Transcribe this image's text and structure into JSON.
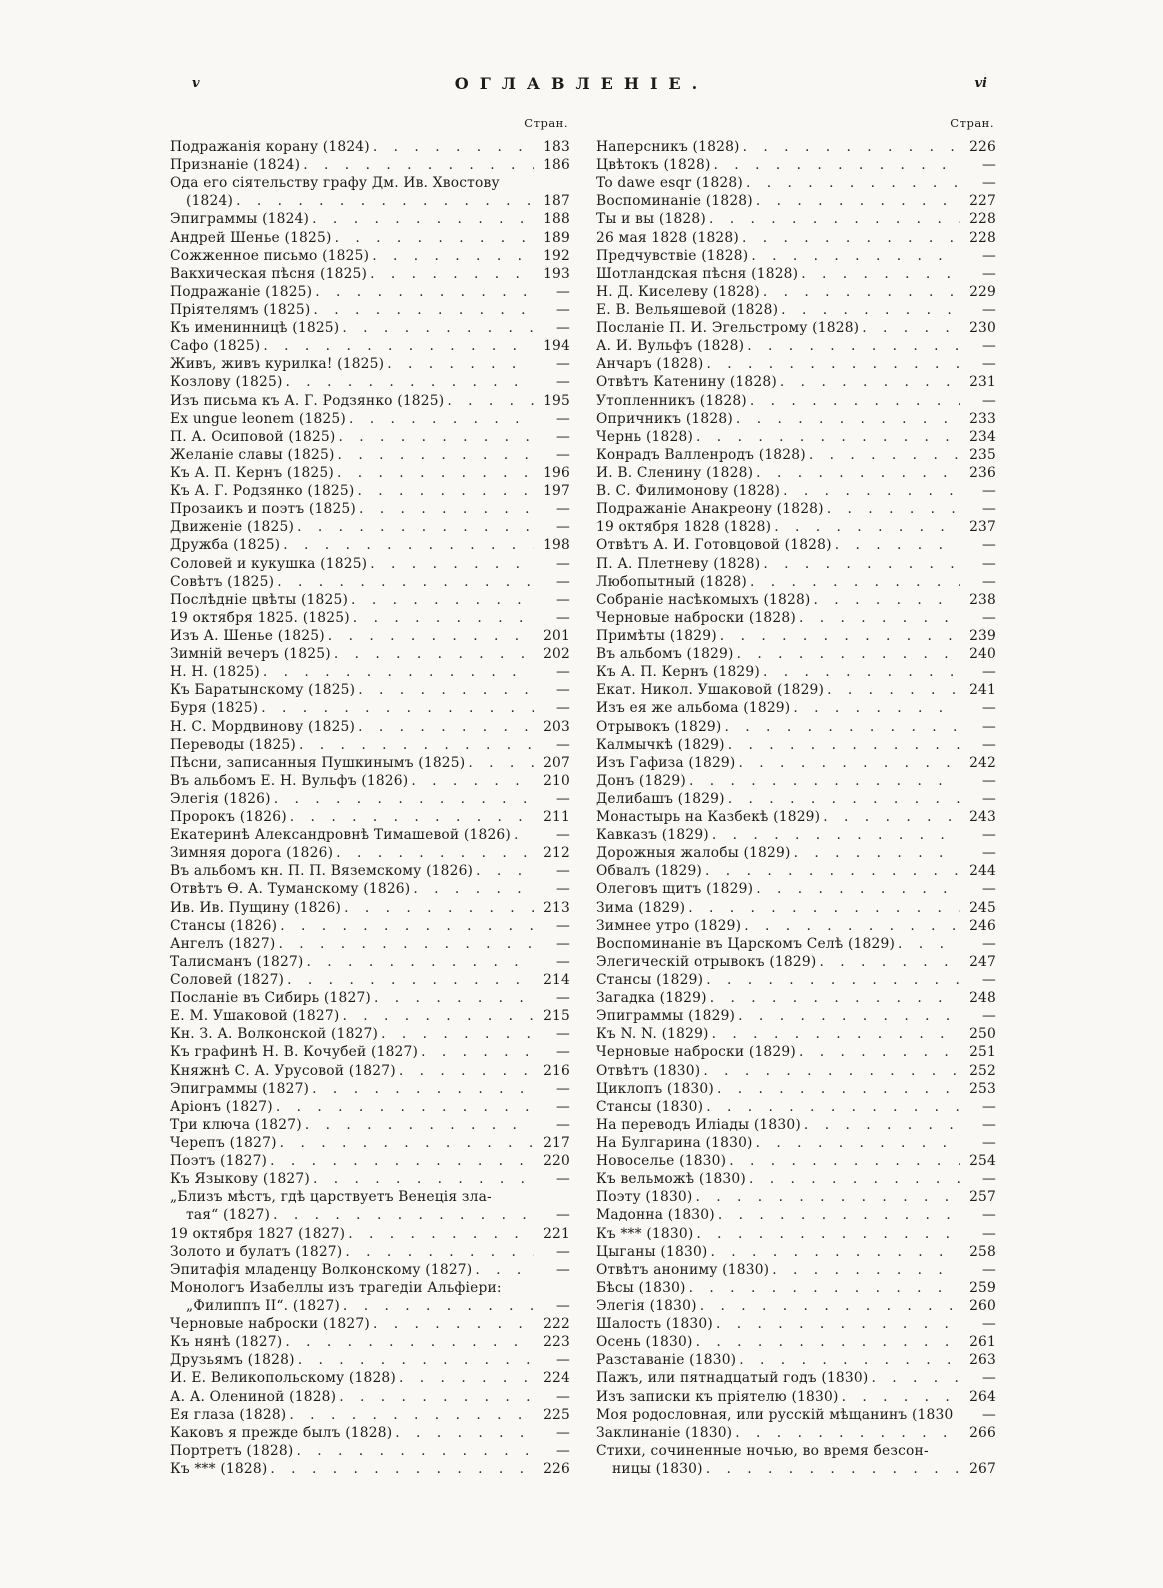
{
  "page": {
    "left_folio": "v",
    "right_folio": "vi",
    "title": "ОГЛАВЛЕНІЕ.",
    "column_header": "Стран."
  },
  "left_column": [
    {
      "text": "Подражанія корану (1824)",
      "page": "183"
    },
    {
      "text": "Признаніе (1824)",
      "page": "186"
    },
    {
      "text": "Ода его сіятельству графу Дм. Ив. Хвостову",
      "page": "",
      "leader": false
    },
    {
      "text": "(1824)",
      "page": "187",
      "indent": true
    },
    {
      "text": "Эпиграммы (1824)",
      "page": "188"
    },
    {
      "text": "Андрей Шенье (1825)",
      "page": "189"
    },
    {
      "text": "Сожженное письмо (1825)",
      "page": "192"
    },
    {
      "text": "Вакхическая пѣсня (1825)",
      "page": "193"
    },
    {
      "text": "Подражаніе (1825)",
      "page": "—"
    },
    {
      "text": "Пріятелямъ (1825)",
      "page": "—"
    },
    {
      "text": "Къ именинницѣ (1825)",
      "page": "—"
    },
    {
      "text": "Сафо (1825)",
      "page": "194"
    },
    {
      "text": "Живъ, живъ курилка! (1825)",
      "page": "—"
    },
    {
      "text": "Козлову (1825)",
      "page": "—"
    },
    {
      "text": "Изъ письма къ А. Г. Родзянко (1825)",
      "page": "195"
    },
    {
      "text": "Ex ungue leonem (1825)",
      "page": "—"
    },
    {
      "text": "П. А. Осиповой (1825)",
      "page": "—"
    },
    {
      "text": "Желаніе славы (1825)",
      "page": "—"
    },
    {
      "text": "Къ А. П. Кернъ (1825)",
      "page": "196"
    },
    {
      "text": "Къ А. Г. Родзянко (1825)",
      "page": "197"
    },
    {
      "text": "Прозаикъ и поэтъ (1825)",
      "page": "—"
    },
    {
      "text": "Движеніе (1825)",
      "page": "—"
    },
    {
      "text": "Дружба (1825)",
      "page": "198"
    },
    {
      "text": "Соловей и кукушка (1825)",
      "page": "—"
    },
    {
      "text": "Совѣтъ (1825)",
      "page": "—"
    },
    {
      "text": "Послѣдніе цвѣты (1825)",
      "page": "—"
    },
    {
      "text": "19 октября 1825. (1825)",
      "page": "—"
    },
    {
      "text": "Изъ А. Шенье (1825)",
      "page": "201"
    },
    {
      "text": "Зимній вечеръ (1825)",
      "page": "202"
    },
    {
      "text": "Н. Н. (1825)",
      "page": "—"
    },
    {
      "text": "Къ Баратынскому (1825)",
      "page": "—"
    },
    {
      "text": "Буря (1825)",
      "page": "—"
    },
    {
      "text": "Н. С. Мордвинову (1825)",
      "page": "203"
    },
    {
      "text": "Переводы (1825)",
      "page": "—"
    },
    {
      "text": "Пѣсни, записанныя Пушкинымъ (1825)",
      "page": "207"
    },
    {
      "text": "Въ альбомъ Е. Н. Вульфъ (1826)",
      "page": "210"
    },
    {
      "text": "Элегія (1826)",
      "page": "—"
    },
    {
      "text": "Пророкъ (1826)",
      "page": "211"
    },
    {
      "text": "Екатеринѣ Александровнѣ Тимашевой (1826)",
      "page": "—"
    },
    {
      "text": "Зимняя дорога (1826)",
      "page": "212"
    },
    {
      "text": "Въ альбомъ кн. П. П. Вяземскому (1826)",
      "page": "—"
    },
    {
      "text": "Отвѣтъ Ѳ. А. Туманскому (1826)",
      "page": "—"
    },
    {
      "text": "Ив. Ив. Пущину (1826)",
      "page": "213"
    },
    {
      "text": "Стансы (1826)",
      "page": "—"
    },
    {
      "text": "Ангелъ (1827)",
      "page": "—"
    },
    {
      "text": "Талисманъ (1827)",
      "page": "—"
    },
    {
      "text": "Соловей (1827)",
      "page": "214"
    },
    {
      "text": "Посланіе въ Сибирь (1827)",
      "page": "—"
    },
    {
      "text": "Е. М. Ушаковой (1827)",
      "page": "215"
    },
    {
      "text": "Кн. З. А. Волконской (1827)",
      "page": "—"
    },
    {
      "text": "Къ графинѣ Н. В. Кочубей (1827)",
      "page": "—"
    },
    {
      "text": "Княжнѣ С. А. Урусовой (1827)",
      "page": "216"
    },
    {
      "text": "Эпиграммы (1827)",
      "page": "—"
    },
    {
      "text": "Аріонъ (1827)",
      "page": "—"
    },
    {
      "text": "Три ключа (1827)",
      "page": "—"
    },
    {
      "text": "Черепъ (1827)",
      "page": "217"
    },
    {
      "text": "Поэтъ (1827)",
      "page": "220"
    },
    {
      "text": "Къ Языкову (1827)",
      "page": "—"
    },
    {
      "text": "„Близъ мѣстъ, гдѣ царствуетъ Венеція зла-",
      "page": "",
      "leader": false
    },
    {
      "text": "тая“ (1827)",
      "page": "—",
      "indent": true
    },
    {
      "text": "19 октября 1827 (1827)",
      "page": "221"
    },
    {
      "text": "Золото и булатъ (1827)",
      "page": "—"
    },
    {
      "text": "Эпитафія младенцу Волконскому (1827)",
      "page": "—"
    },
    {
      "text": "Монологъ Изабеллы изъ трагедіи Альфіери:",
      "page": "",
      "leader": false
    },
    {
      "text": "„Филиппъ II“. (1827)",
      "page": "—",
      "indent": true
    },
    {
      "text": "Черновые наброски (1827)",
      "page": "222"
    },
    {
      "text": "Къ нянѣ (1827)",
      "page": "223"
    },
    {
      "text": "Друзьямъ (1828)",
      "page": "—"
    },
    {
      "text": "И. Е. Великопольскому (1828)",
      "page": "224"
    },
    {
      "text": "А. А. Олениной (1828)",
      "page": "—"
    },
    {
      "text": "Ея глаза (1828)",
      "page": "225"
    },
    {
      "text": "Каковъ я прежде былъ (1828)",
      "page": "—"
    },
    {
      "text": "Портретъ (1828)",
      "page": "—"
    },
    {
      "text": "Къ *** (1828)",
      "page": "226"
    }
  ],
  "right_column": [
    {
      "text": "Наперсникъ (1828)",
      "page": "226"
    },
    {
      "text": "Цвѣтокъ (1828)",
      "page": "—"
    },
    {
      "text": "To dawe esqr (1828)",
      "page": "—"
    },
    {
      "text": "Воспоминаніе (1828)",
      "page": "227"
    },
    {
      "text": "Ты и вы (1828)",
      "page": "228"
    },
    {
      "text": "26 мая 1828 (1828)",
      "page": "228"
    },
    {
      "text": "Предчувствіе (1828)",
      "page": "—"
    },
    {
      "text": "Шотландская пѣсня (1828)",
      "page": "—"
    },
    {
      "text": "Н. Д. Киселеву (1828)",
      "page": "229"
    },
    {
      "text": "Е. В. Вельяшевой (1828)",
      "page": "—"
    },
    {
      "text": "Посланіе П. И. Эгельстрому (1828)",
      "page": "230"
    },
    {
      "text": "А. И. Вульфъ (1828)",
      "page": "—"
    },
    {
      "text": "Анчаръ (1828)",
      "page": "—"
    },
    {
      "text": "Отвѣтъ Катенину (1828)",
      "page": "231"
    },
    {
      "text": "Утопленникъ (1828)",
      "page": "—"
    },
    {
      "text": "Опричникъ (1828)",
      "page": "233"
    },
    {
      "text": "Чернь (1828)",
      "page": "234"
    },
    {
      "text": "Конрадъ Валленродъ (1828)",
      "page": "235"
    },
    {
      "text": "И. В. Сленину (1828)",
      "page": "236"
    },
    {
      "text": "В. С. Филимонову (1828)",
      "page": "—"
    },
    {
      "text": "Подражаніе Анакреону (1828)",
      "page": "—"
    },
    {
      "text": "19 октября 1828 (1828)",
      "page": "237"
    },
    {
      "text": "Отвѣтъ А. И. Готовцовой (1828)",
      "page": "—"
    },
    {
      "text": "П. А. Плетневу (1828)",
      "page": "—"
    },
    {
      "text": "Любопытный (1828)",
      "page": "—"
    },
    {
      "text": "Собраніе насѣкомыхъ (1828)",
      "page": "238"
    },
    {
      "text": "Черновые наброски (1828)",
      "page": "—"
    },
    {
      "text": "Примѣты (1829)",
      "page": "239"
    },
    {
      "text": "Въ альбомъ (1829)",
      "page": "240"
    },
    {
      "text": "Къ А. П. Кернъ (1829)",
      "page": "—"
    },
    {
      "text": "Екат. Никол. Ушаковой (1829)",
      "page": "241"
    },
    {
      "text": "Изъ ея же альбома (1829)",
      "page": "—"
    },
    {
      "text": "Отрывокъ (1829)",
      "page": "—"
    },
    {
      "text": "Калмычкѣ (1829)",
      "page": "—"
    },
    {
      "text": "Изъ Гафиза (1829)",
      "page": "242"
    },
    {
      "text": "Донъ (1829)",
      "page": "—"
    },
    {
      "text": "Делибашъ (1829)",
      "page": "—"
    },
    {
      "text": "Монастырь на Казбекѣ (1829)",
      "page": "243"
    },
    {
      "text": "Кавказъ (1829)",
      "page": "—"
    },
    {
      "text": "Дорожныя жалобы (1829)",
      "page": "—"
    },
    {
      "text": "Обвалъ (1829)",
      "page": "244"
    },
    {
      "text": "Олеговъ щитъ (1829)",
      "page": "—"
    },
    {
      "text": "Зима (1829)",
      "page": "245"
    },
    {
      "text": "Зимнее утро (1829)",
      "page": "246"
    },
    {
      "text": "Воспоминаніе въ Царскомъ Селѣ (1829)",
      "page": "—"
    },
    {
      "text": "Элегическій отрывокъ (1829)",
      "page": "247"
    },
    {
      "text": "Стансы (1829)",
      "page": "—"
    },
    {
      "text": "Загадка (1829)",
      "page": "248"
    },
    {
      "text": "Эпиграммы (1829)",
      "page": "—"
    },
    {
      "text": "Къ N. N. (1829)",
      "page": "250"
    },
    {
      "text": "Черновые наброски (1829)",
      "page": "251"
    },
    {
      "text": "Отвѣтъ (1830)",
      "page": "252"
    },
    {
      "text": "Циклопъ (1830)",
      "page": "253"
    },
    {
      "text": "Стансы (1830)",
      "page": "—"
    },
    {
      "text": "На переводъ Иліады (1830)",
      "page": "—"
    },
    {
      "text": "На Булгарина (1830)",
      "page": "—"
    },
    {
      "text": "Новоселье (1830)",
      "page": "254"
    },
    {
      "text": "Къ вельможѣ (1830)",
      "page": "—"
    },
    {
      "text": "Поэту (1830)",
      "page": "257"
    },
    {
      "text": "Мадонна (1830)",
      "page": "—"
    },
    {
      "text": "Къ *** (1830)",
      "page": "—"
    },
    {
      "text": "Цыганы (1830)",
      "page": "258"
    },
    {
      "text": "Отвѣтъ анониму (1830)",
      "page": "—"
    },
    {
      "text": "Бѣсы (1830)",
      "page": "259"
    },
    {
      "text": "Элегія (1830)",
      "page": "260"
    },
    {
      "text": "Шалость (1830)",
      "page": "—"
    },
    {
      "text": "Осень (1830)",
      "page": "261"
    },
    {
      "text": "Разставаніе (1830)",
      "page": "263"
    },
    {
      "text": "Пажъ, или пятнадцатый годъ (1830)",
      "page": "—"
    },
    {
      "text": "Изъ записки къ пріятелю (1830)",
      "page": "264"
    },
    {
      "text": "Моя родословная, или русскій мѣщанинъ (1830)",
      "page": "—",
      "leader": false
    },
    {
      "text": "Заклинаніе (1830)",
      "page": "266"
    },
    {
      "text": "Стихи, сочиненные ночью, во время безсон-",
      "page": "",
      "leader": false
    },
    {
      "text": "ницы (1830)",
      "page": "267",
      "indent": true
    }
  ]
}
